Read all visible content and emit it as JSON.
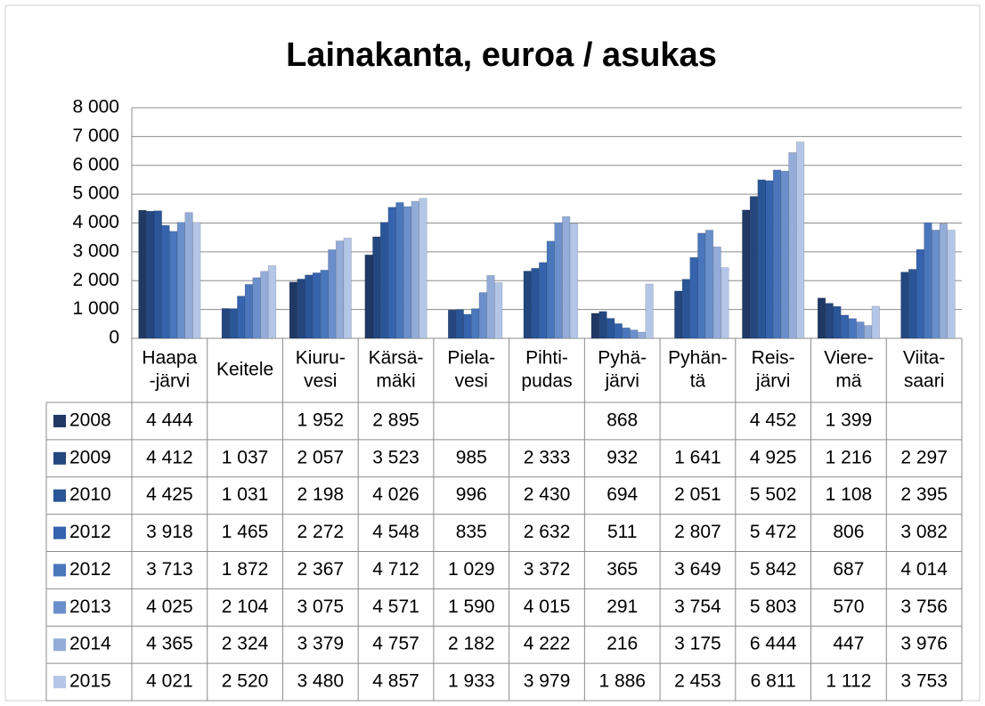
{
  "chart_data": {
    "type": "bar",
    "title": "Lainakanta, euroa / asukas",
    "categories": [
      [
        "Haapa",
        "-järvi"
      ],
      [
        "Keitele"
      ],
      [
        "Kiuru-",
        "vesi"
      ],
      [
        "Kärsä-",
        "mäki"
      ],
      [
        "Piela-",
        "vesi"
      ],
      [
        "Pihti-",
        "pudas"
      ],
      [
        "Pyhä-",
        "järvi"
      ],
      [
        "Pyhän-",
        "tä"
      ],
      [
        "Reis-",
        "järvi"
      ],
      [
        "Viere-",
        "mä"
      ],
      [
        "Viita-",
        "saari"
      ]
    ],
    "series": [
      {
        "name": "2008",
        "color": "#1f3864",
        "values": [
          4444,
          null,
          1952,
          2895,
          null,
          null,
          868,
          null,
          4452,
          1399,
          null
        ],
        "value_labels": [
          "4 444",
          null,
          "1 952",
          "2 895",
          null,
          null,
          "868",
          null,
          "4 452",
          "1 399",
          null
        ]
      },
      {
        "name": "2009",
        "color": "#24477f",
        "values": [
          4412,
          1037,
          2057,
          3523,
          985,
          2333,
          932,
          1641,
          4925,
          1216,
          2297
        ],
        "value_labels": [
          "4 412",
          "1 037",
          "2 057",
          "3 523",
          "985",
          "2 333",
          "932",
          "1 641",
          "4 925",
          "1 216",
          "2 297"
        ]
      },
      {
        "name": "2010",
        "color": "#2a5597",
        "values": [
          4425,
          1031,
          2198,
          4026,
          996,
          2430,
          694,
          2051,
          5502,
          1108,
          2395
        ],
        "value_labels": [
          "4 425",
          "1 031",
          "2 198",
          "4 026",
          "996",
          "2 430",
          "694",
          "2 051",
          "5 502",
          "1 108",
          "2 395"
        ]
      },
      {
        "name": "2012",
        "color": "#3563ad",
        "values": [
          3918,
          1465,
          2272,
          4548,
          835,
          2632,
          511,
          2807,
          5472,
          806,
          3082
        ],
        "value_labels": [
          "3 918",
          "1 465",
          "2 272",
          "4 548",
          "835",
          "2 632",
          "511",
          "2 807",
          "5 472",
          "806",
          "3 082"
        ]
      },
      {
        "name": "2012",
        "color": "#4a76bb",
        "values": [
          3713,
          1872,
          2367,
          4712,
          1029,
          3372,
          365,
          3649,
          5842,
          687,
          4014
        ],
        "value_labels": [
          "3 713",
          "1 872",
          "2 367",
          "4 712",
          "1 029",
          "3 372",
          "365",
          "3 649",
          "5 842",
          "687",
          "4 014"
        ]
      },
      {
        "name": "2013",
        "color": "#6b8fca",
        "values": [
          4025,
          2104,
          3075,
          4571,
          1590,
          4015,
          291,
          3754,
          5803,
          570,
          3756
        ],
        "value_labels": [
          "4 025",
          "2 104",
          "3 075",
          "4 571",
          "1 590",
          "4 015",
          "291",
          "3 754",
          "5 803",
          "570",
          "3 756"
        ]
      },
      {
        "name": "2014",
        "color": "#93acd8",
        "values": [
          4365,
          2324,
          3379,
          4757,
          2182,
          4222,
          216,
          3175,
          6444,
          447,
          3976
        ],
        "value_labels": [
          "4 365",
          "2 324",
          "3 379",
          "4 757",
          "2 182",
          "4 222",
          "216",
          "3 175",
          "6 444",
          "447",
          "3 976"
        ]
      },
      {
        "name": "2015",
        "color": "#b4c6e7",
        "values": [
          4021,
          2520,
          3480,
          4857,
          1933,
          3979,
          1886,
          2453,
          6811,
          1112,
          3753
        ],
        "value_labels": [
          "4 021",
          "2 520",
          "3 480",
          "4 857",
          "1 933",
          "3 979",
          "1 886",
          "2 453",
          "6 811",
          "1 112",
          "3 753"
        ]
      }
    ],
    "ylim": [
      0,
      8000
    ],
    "yticks": [
      0,
      {
        "value": 1000,
        "label": "1 000"
      },
      {
        "value": 2000,
        "label": "2 000"
      },
      {
        "value": 3000,
        "label": "3 000"
      },
      {
        "value": 4000,
        "label": "4 000"
      },
      {
        "value": 5000,
        "label": "5 000"
      },
      {
        "value": 6000,
        "label": "6 000"
      },
      {
        "value": 7000,
        "label": "7 000"
      },
      {
        "value": 8000,
        "label": "8 000"
      }
    ],
    "grid": true
  }
}
